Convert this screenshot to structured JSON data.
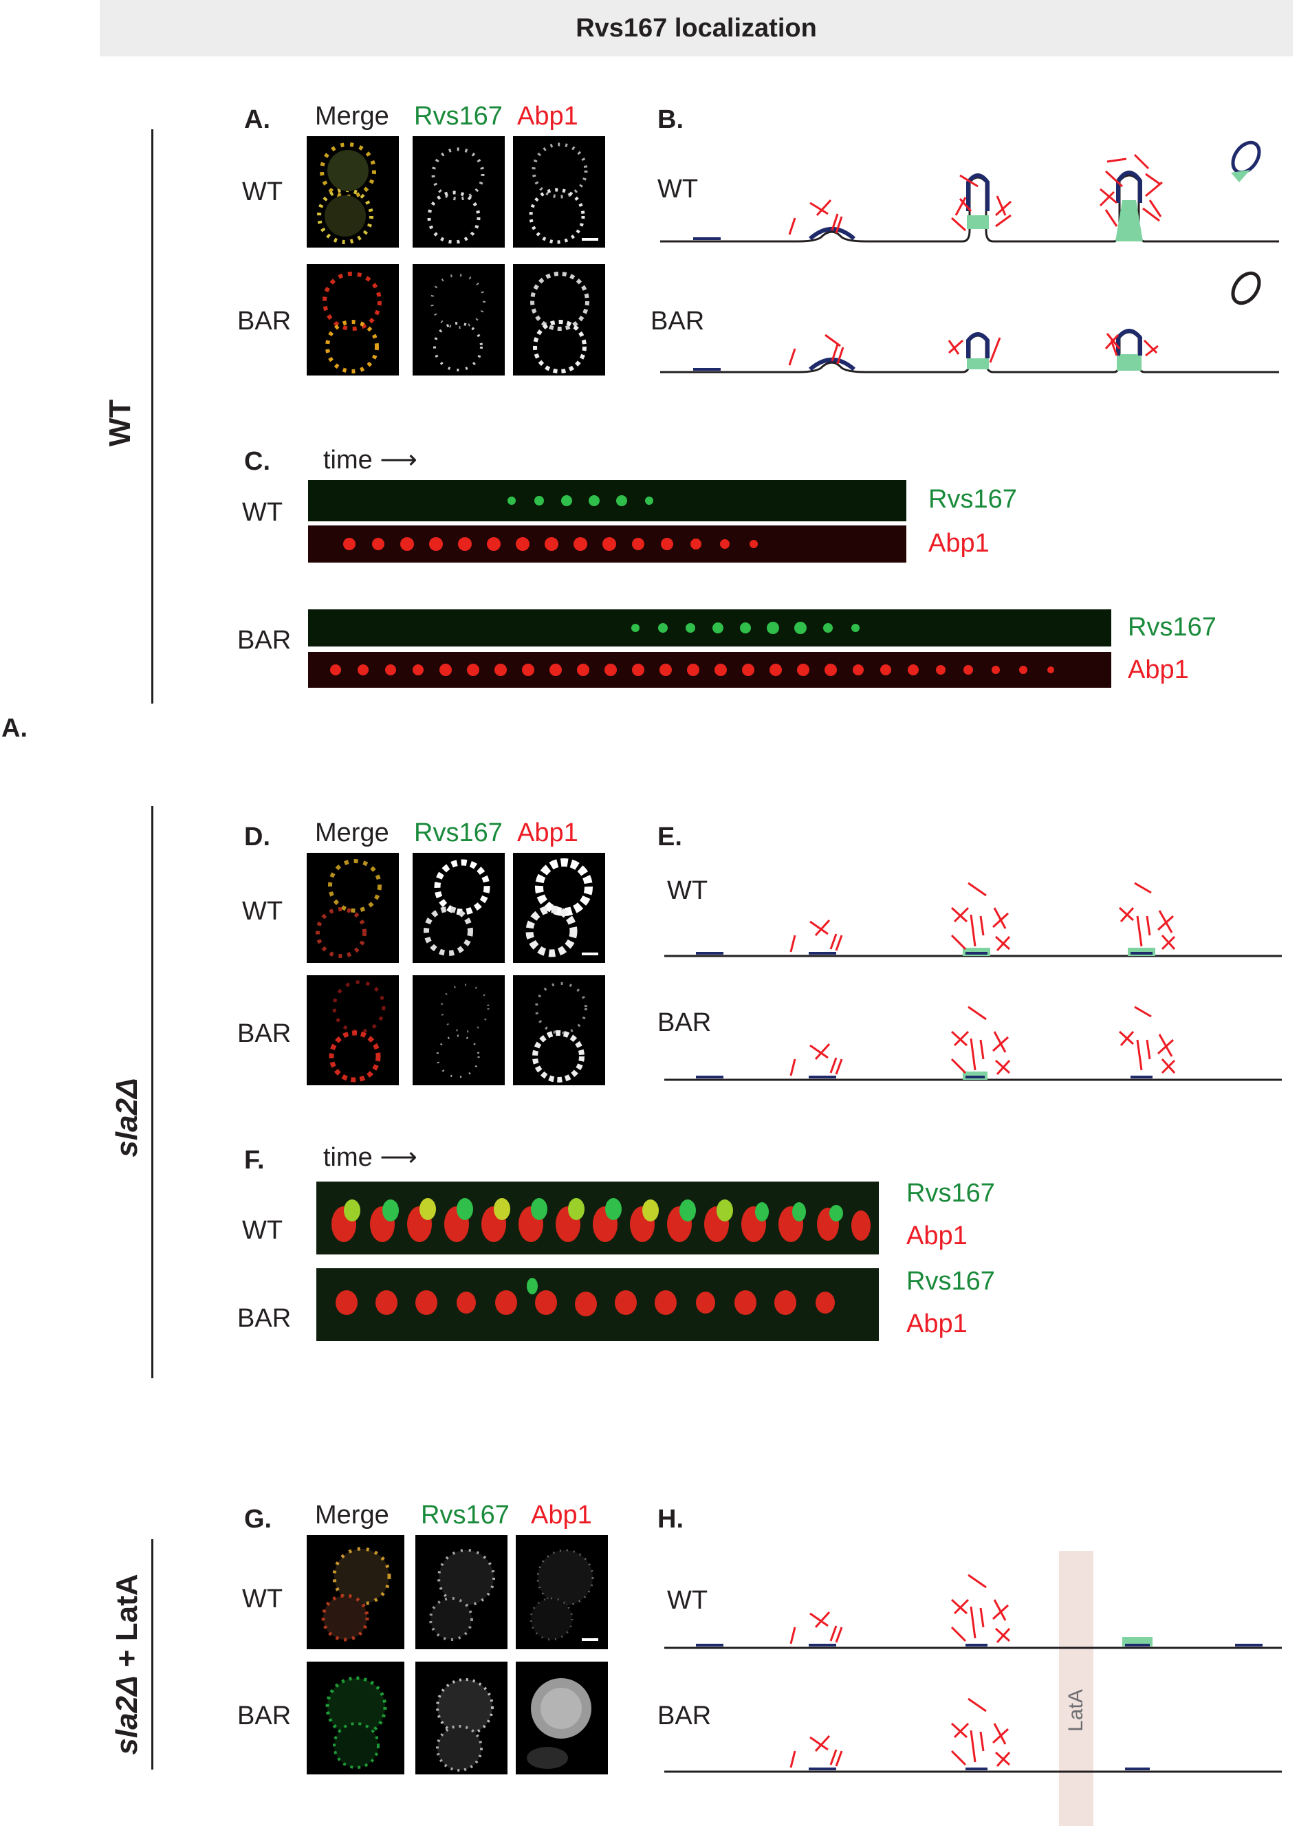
{
  "title": "Rvs167 localization",
  "row_labels": {
    "wt": "WT",
    "sla2": "sla2Δ",
    "sla2_lata_a": "sla2Δ",
    "sla2_lata_b": " + LatA"
  },
  "stray_label": "A.",
  "panels": {
    "A": "A.",
    "B": "B.",
    "C": "C.",
    "D": "D.",
    "E": "E.",
    "F": "F.",
    "G": "G.",
    "H": "H."
  },
  "channels": {
    "merge": "Merge",
    "rvs167": "Rvs167",
    "abp1": "Abp1"
  },
  "strains": {
    "wt": "WT",
    "bar": "BAR"
  },
  "time_label": "time",
  "time_arrow": "⟶",
  "latA_label": "LatA",
  "colors": {
    "green": "#1a8a3b",
    "red": "#ed1c24",
    "navy": "#1f2a6b",
    "light_green": "#7ed3a0",
    "title_bg": "#ededed",
    "latA_band": "#f2e2de"
  }
}
